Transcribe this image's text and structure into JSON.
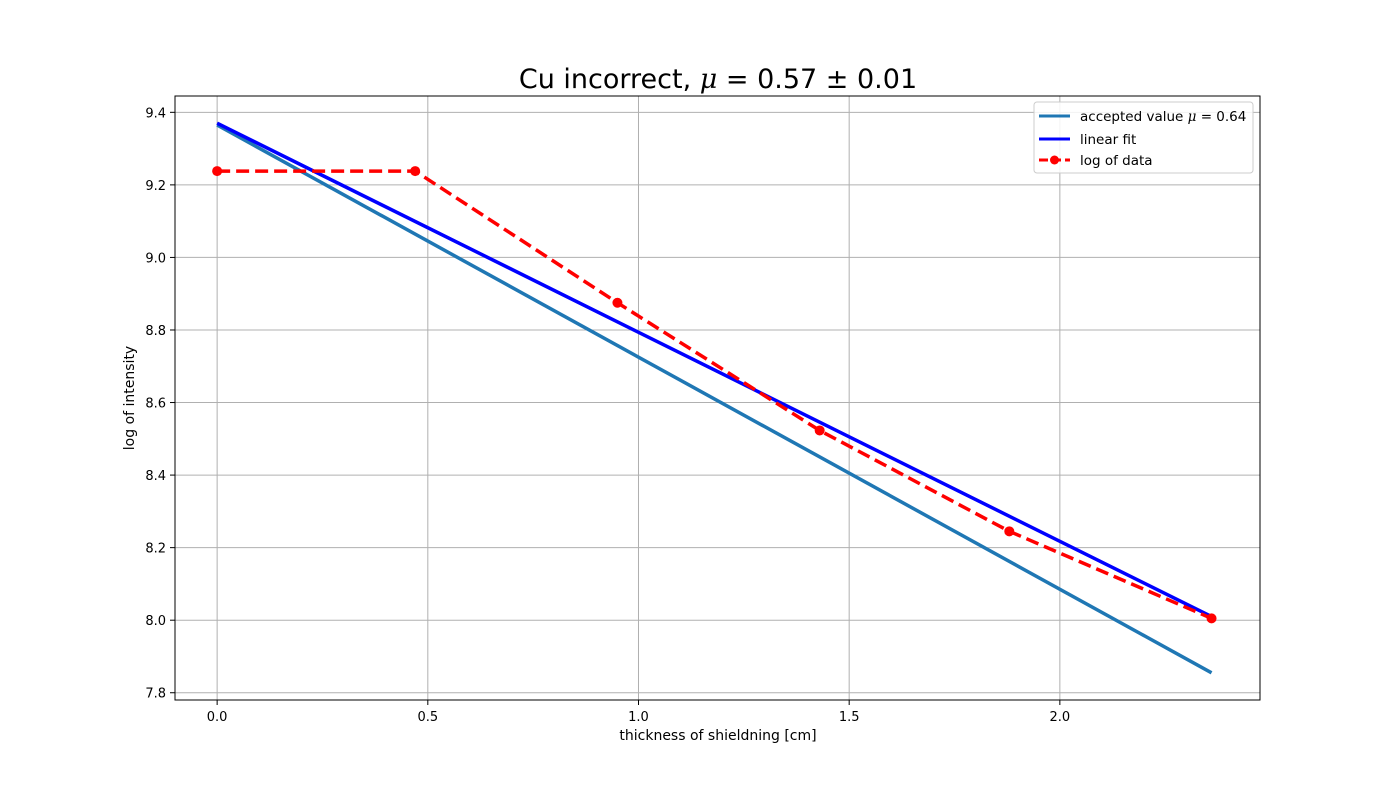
{
  "chart_data": {
    "type": "line",
    "title": {
      "prefix": "Cu incorrect, ",
      "symbol": "μ",
      "expr": " = 0.57 ± 0.01"
    },
    "xlabel": "thickness of shieldning [cm]",
    "ylabel": "log of intensity",
    "xlim": [
      -0.1,
      2.475
    ],
    "ylim": [
      7.78,
      9.445
    ],
    "xticks": [
      0.0,
      0.5,
      1.0,
      1.5,
      2.0
    ],
    "xtick_labels": [
      "0.0",
      "0.5",
      "1.0",
      "1.5",
      "2.0"
    ],
    "yticks": [
      7.8,
      8.0,
      8.2,
      8.4,
      8.6,
      8.8,
      9.0,
      9.2,
      9.4
    ],
    "ytick_labels": [
      "7.8",
      "8.0",
      "8.2",
      "8.4",
      "8.6",
      "8.8",
      "9.0",
      "9.2",
      "9.4"
    ],
    "grid": true,
    "legend_position": "top-right",
    "series": [
      {
        "name": "accepted value",
        "name_symbol": "μ",
        "name_expr": " = 0.64",
        "style": "solid",
        "color": "#1f77b4",
        "x": [
          0.0,
          2.36
        ],
        "y": [
          9.365,
          7.855
        ]
      },
      {
        "name": "linear fit",
        "style": "solid",
        "color": "#0000ff",
        "x": [
          0.0,
          2.36
        ],
        "y": [
          9.37,
          8.01
        ]
      },
      {
        "name": "log of data",
        "style": "dashed-markers",
        "color": "#ff0000",
        "x": [
          0.0,
          0.47,
          0.95,
          1.43,
          1.88,
          2.36
        ],
        "y": [
          9.238,
          9.238,
          8.875,
          8.523,
          8.245,
          8.005
        ]
      }
    ]
  }
}
